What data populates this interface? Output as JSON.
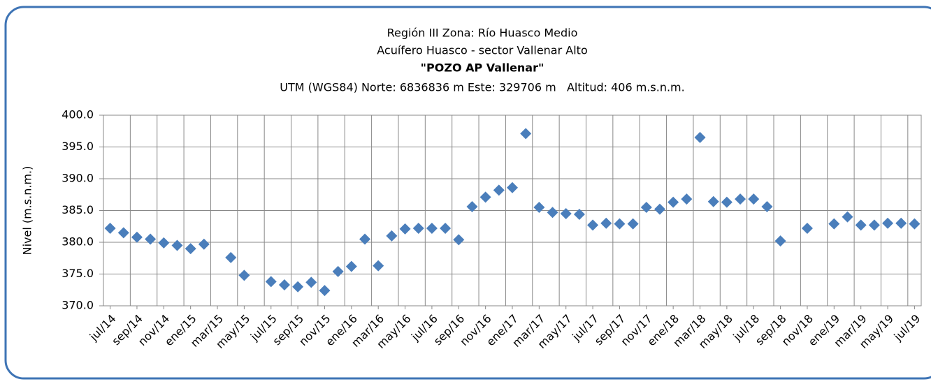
{
  "chart_data": {
    "type": "scatter",
    "title_lines": [
      "Región III Zona: Río Huasco Medio",
      "Acuífero Huasco - sector Vallenar Alto",
      "\"POZO AP Vallenar\"",
      "UTM (WGS84) Norte: 6836836 m Este: 329706 m   Altitud: 406 m.s.n.m."
    ],
    "y_label": "Nivel (m.s.n.m.)",
    "categories": [
      "jul/14",
      null,
      "sep/14",
      null,
      "nov/14",
      null,
      "ene/15",
      null,
      "mar/15",
      null,
      "may/15",
      null,
      "jul/15",
      null,
      "sep/15",
      null,
      "nov/15",
      null,
      "ene/16",
      null,
      "mar/16",
      null,
      "may/16",
      null,
      "jul/16",
      null,
      "sep/16",
      null,
      "nov/16",
      null,
      "ene/17",
      null,
      "mar/17",
      null,
      "may/17",
      null,
      "jul/17",
      null,
      "sep/17",
      null,
      "nov/17",
      null,
      "ene/18",
      null,
      "mar/18",
      null,
      "may/18",
      null,
      "jul/18",
      null,
      "sep/18",
      null,
      "nov/18",
      null,
      "ene/19",
      null,
      "mar/19",
      null,
      "may/19",
      null,
      "jul/19"
    ],
    "values": [
      382.2,
      381.5,
      380.8,
      380.5,
      379.9,
      379.5,
      379.0,
      379.7,
      null,
      377.6,
      374.8,
      null,
      373.8,
      373.3,
      373.0,
      373.7,
      372.4,
      375.4,
      376.2,
      380.5,
      376.3,
      381.0,
      382.1,
      382.2,
      382.2,
      382.2,
      380.4,
      385.6,
      387.1,
      388.2,
      388.6,
      397.1,
      385.5,
      384.7,
      384.5,
      384.4,
      382.7,
      383.0,
      382.9,
      382.9,
      385.5,
      385.2,
      386.3,
      386.8,
      396.5,
      386.4,
      386.3,
      386.8,
      386.8,
      385.6,
      380.2,
      null,
      382.2,
      null,
      382.9,
      384.0,
      382.7,
      382.7,
      383.0,
      383.0,
      382.9
    ],
    "color": "#4a7ebb",
    "ylim": [
      370,
      400
    ],
    "yticks": [
      {
        "value": 370,
        "label": "370.0"
      },
      {
        "value": 375,
        "label": "375.0"
      },
      {
        "value": 380,
        "label": "380.0"
      },
      {
        "value": 385,
        "label": "385.0"
      },
      {
        "value": 390,
        "label": "390.0"
      },
      {
        "value": 395,
        "label": "395.0"
      },
      {
        "value": 400,
        "label": "400.0"
      }
    ],
    "grid": true
  }
}
